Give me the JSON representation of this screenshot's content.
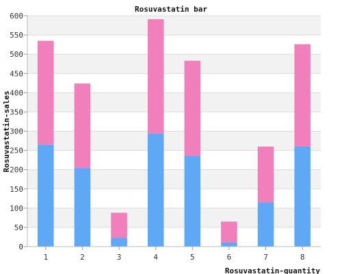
{
  "chart_data": {
    "type": "bar",
    "stacked": true,
    "title": "Rosuvastatin bar",
    "xlabel": "Rosuvastatin-quantity",
    "ylabel": "Rosuvastatin-sales",
    "categories": [
      "1",
      "2",
      "3",
      "4",
      "5",
      "6",
      "7",
      "8"
    ],
    "series": [
      {
        "color": "#5fa8f5",
        "values": [
          265,
          204,
          23,
          294,
          236,
          11,
          115,
          260
        ]
      },
      {
        "color": "#f07fbb",
        "values": [
          270,
          220,
          65,
          297,
          247,
          54,
          145,
          266
        ]
      }
    ],
    "ylim": [
      0,
      600
    ],
    "yticks": [
      "0",
      "50",
      "100",
      "150",
      "200",
      "250",
      "300",
      "350",
      "400",
      "450",
      "500",
      "550",
      "600"
    ],
    "grid": true,
    "legend": "none"
  }
}
